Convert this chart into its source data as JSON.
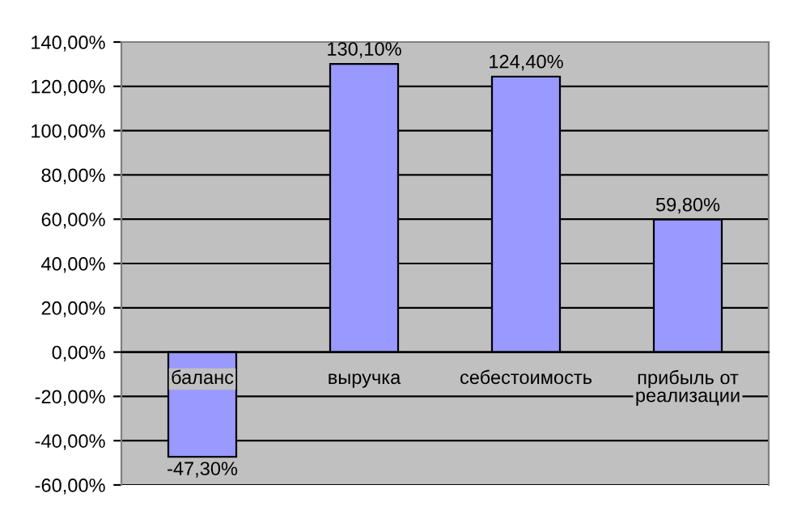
{
  "chart_data": {
    "type": "bar",
    "categories": [
      "баланс",
      "выручка",
      "себестоимость",
      "прибыль от\nреализации"
    ],
    "values": [
      -47.3,
      130.1,
      124.4,
      59.8
    ],
    "value_labels": [
      "-47,30%",
      "130,10%",
      "124,40%",
      "59,80%"
    ],
    "color": "#9999ff",
    "ylim": [
      -60,
      140
    ],
    "yticks": [
      {
        "value": -60,
        "label": "-60,00%"
      },
      {
        "value": -40,
        "label": "-40,00%"
      },
      {
        "value": -20,
        "label": "-20,00%"
      },
      {
        "value": 0,
        "label": "0,00%"
      },
      {
        "value": 20,
        "label": "20,00%"
      },
      {
        "value": 40,
        "label": "40,00%"
      },
      {
        "value": 60,
        "label": "60,00%"
      },
      {
        "value": 80,
        "label": "80,00%"
      },
      {
        "value": 100,
        "label": "100,00%"
      },
      {
        "value": 120,
        "label": "120,00%"
      },
      {
        "value": 140,
        "label": "140,00%"
      }
    ],
    "grid": "y"
  }
}
